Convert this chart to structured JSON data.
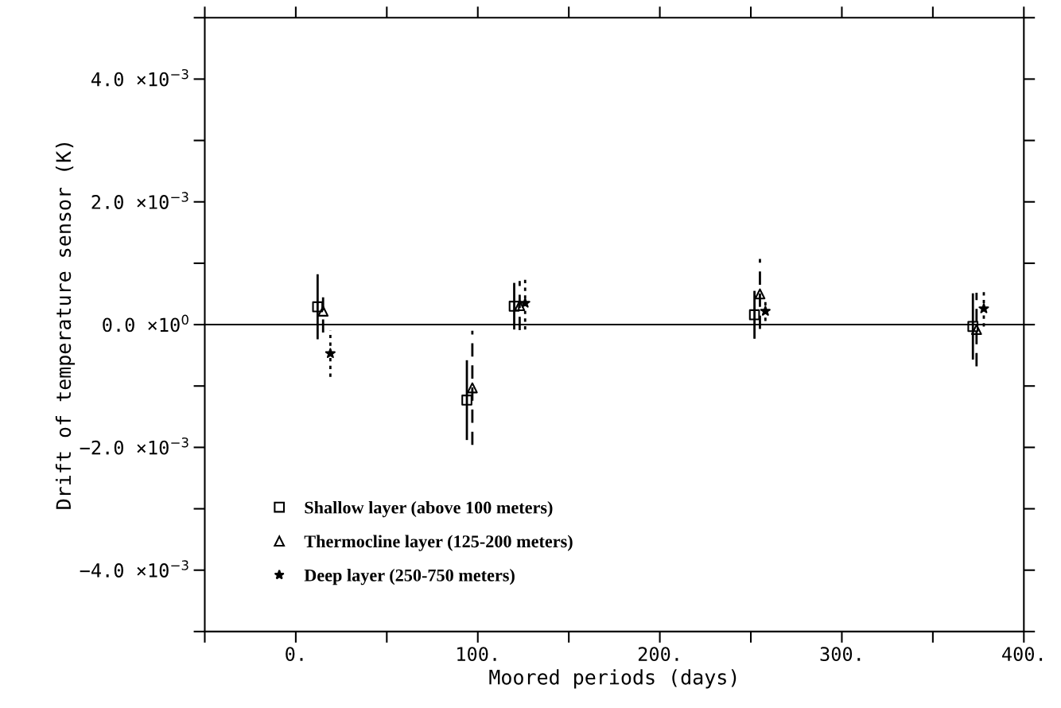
{
  "chart_data": {
    "type": "scatter",
    "xlabel": "Moored periods (days)",
    "ylabel": "Drift of temperature sensor (K)",
    "xlim": [
      -50,
      400
    ],
    "ylim": [
      -0.005,
      0.005
    ],
    "xticks": [
      {
        "value": -50,
        "label": null
      },
      {
        "value": 0,
        "label": "0."
      },
      {
        "value": 50,
        "label": null
      },
      {
        "value": 100,
        "label": "100."
      },
      {
        "value": 150,
        "label": null
      },
      {
        "value": 200,
        "label": "200."
      },
      {
        "value": 250,
        "label": null
      },
      {
        "value": 300,
        "label": "300."
      },
      {
        "value": 350,
        "label": null
      },
      {
        "value": 400,
        "label": "400."
      }
    ],
    "yticks": [
      {
        "value": -0.005,
        "label": null
      },
      {
        "value": -0.004,
        "label": "−4.0 ×10$^{−3}$"
      },
      {
        "value": -0.003,
        "label": null
      },
      {
        "value": -0.002,
        "label": "−2.0 ×10$^{−3}$"
      },
      {
        "value": -0.001,
        "label": null
      },
      {
        "value": 0,
        "label": "0.0 ×10$^{0}$"
      },
      {
        "value": 0.001,
        "label": null
      },
      {
        "value": 0.002,
        "label": "2.0 ×10$^{−3}$"
      },
      {
        "value": 0.003,
        "label": null
      },
      {
        "value": 0.004,
        "label": "4.0 ×10$^{−3}$"
      },
      {
        "value": 0.005,
        "label": null
      }
    ],
    "ref_lines": [
      {
        "axis": "y",
        "value": 0,
        "color": "#000000",
        "line_style": "solid"
      }
    ],
    "legend": "bottom left",
    "grid": false,
    "series": [
      {
        "name": "Shallow layer (above 100 meters)",
        "color": "#000000",
        "marker": "square",
        "line_style": "solid",
        "x": [
          12,
          94,
          120,
          252,
          372
        ],
        "values": [
          0.00029,
          -0.00123,
          0.0003,
          0.00016,
          -3e-05
        ],
        "errors": [
          0.00053,
          0.00065,
          0.00038,
          0.00039,
          0.00054
        ]
      },
      {
        "name": "Thermocline layer (125-200 meters)",
        "color": "#000000",
        "marker": "triangle",
        "line_style": "dashed",
        "x": [
          15,
          97,
          123,
          255,
          374
        ],
        "values": [
          0.00022,
          -0.00103,
          0.00031,
          0.0005,
          -8e-05
        ],
        "errors": [
          0.00035,
          0.00093,
          0.0004,
          0.00057,
          0.0006
        ]
      },
      {
        "name": "Deep layer (250-750 meters)",
        "color": "#000000",
        "marker": "star",
        "line_style": "dotted",
        "x": [
          19,
          126,
          258,
          378
        ],
        "values": [
          -0.00047,
          0.00035,
          0.00022,
          0.00026
        ],
        "errors": [
          0.00038,
          0.00043,
          0.00016,
          0.00029
        ]
      }
    ]
  }
}
